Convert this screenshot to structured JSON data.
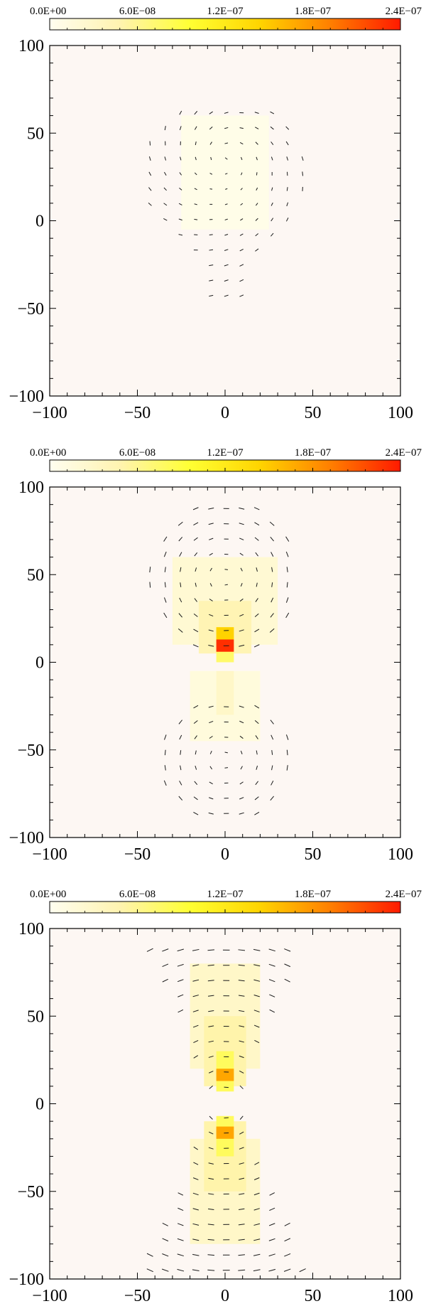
{
  "colorbar": {
    "tick_labels": [
      "0.0E+00",
      "6.0E−08",
      "1.2E−07",
      "1.8E−07",
      "2.4E−07"
    ],
    "colors": [
      "#fffef0",
      "#fff3b0",
      "#ffff33",
      "#ffd400",
      "#ff7f00",
      "#ff1a00"
    ]
  },
  "chart_data": [
    {
      "type": "heatmap",
      "panel": "top",
      "title": "",
      "xlabel": "",
      "ylabel": "",
      "xlim": [
        -100,
        100
      ],
      "ylim": [
        -100,
        100
      ],
      "x_tick_labels": [
        "−100",
        "−50",
        "0",
        "50",
        "100"
      ],
      "y_tick_labels": [
        "100",
        "50",
        "0",
        "−50",
        "−100"
      ],
      "color_range": [
        0,
        2.4e-07
      ],
      "background_color": "#fdf7f3",
      "cells": [
        {
          "x": [
            -5,
            5
          ],
          "y": [
            0,
            50
          ],
          "value": 1.6e-08
        },
        {
          "x": [
            -25,
            25
          ],
          "y": [
            -5,
            60
          ],
          "value": 6e-09
        }
      ],
      "vectors": {
        "region": "blob above center, radius about 45, plus a narrow stem below to y=-45",
        "spacing": 8.7
      }
    },
    {
      "type": "heatmap",
      "panel": "middle",
      "title": "",
      "xlabel": "",
      "ylabel": "",
      "xlim": [
        -100,
        100
      ],
      "ylim": [
        -100,
        100
      ],
      "x_tick_labels": [
        "−100",
        "−50",
        "0",
        "50",
        "100"
      ],
      "y_tick_labels": [
        "100",
        "50",
        "0",
        "−50",
        "−100"
      ],
      "color_range": [
        0,
        2.4e-07
      ],
      "background_color": "#fdf7f3",
      "cells": [
        {
          "x": [
            -30,
            30
          ],
          "y": [
            10,
            60
          ],
          "value": 2.2e-08
        },
        {
          "x": [
            -15,
            15
          ],
          "y": [
            5,
            35
          ],
          "value": 4.5e-08
        },
        {
          "x": [
            -5,
            5
          ],
          "y": [
            0,
            20
          ],
          "value": 7.5e-08
        },
        {
          "x": [
            -5,
            5
          ],
          "y": [
            13,
            20
          ],
          "value": 1.45e-07
        },
        {
          "x": [
            -5,
            5
          ],
          "y": [
            6,
            13
          ],
          "value": 2.3e-07
        },
        {
          "x": [
            -20,
            20
          ],
          "y": [
            -45,
            -5
          ],
          "value": 1.5e-08
        },
        {
          "x": [
            -5,
            5
          ],
          "y": [
            -30,
            -5
          ],
          "value": 3e-08
        }
      ],
      "vectors": {
        "region": "upper lobe around (0, 50) radius about 45 and lower lobe around (0, -55) radius about 38",
        "spacing": 8.7
      }
    },
    {
      "type": "heatmap",
      "panel": "bottom",
      "title": "",
      "xlabel": "",
      "ylabel": "",
      "xlim": [
        -100,
        100
      ],
      "ylim": [
        -100,
        100
      ],
      "x_tick_labels": [
        "−100",
        "−50",
        "0",
        "50",
        "100"
      ],
      "y_tick_labels": [
        "100",
        "50",
        "0",
        "−50",
        "−100"
      ],
      "color_range": [
        0,
        2.4e-07
      ],
      "background_color": "#fdf7f3",
      "cells": [
        {
          "x": [
            -20,
            20
          ],
          "y": [
            20,
            80
          ],
          "value": 3e-08
        },
        {
          "x": [
            -12,
            12
          ],
          "y": [
            10,
            50
          ],
          "value": 5e-08
        },
        {
          "x": [
            -5,
            5
          ],
          "y": [
            7,
            30
          ],
          "value": 8e-08
        },
        {
          "x": [
            -5,
            5
          ],
          "y": [
            13,
            20
          ],
          "value": 1.7e-07
        },
        {
          "x": [
            -20,
            20
          ],
          "y": [
            -80,
            -20
          ],
          "value": 3e-08
        },
        {
          "x": [
            -12,
            12
          ],
          "y": [
            -50,
            -10
          ],
          "value": 5e-08
        },
        {
          "x": [
            -5,
            5
          ],
          "y": [
            -30,
            -7
          ],
          "value": 8e-08
        },
        {
          "x": [
            -5,
            5
          ],
          "y": [
            -20,
            -13
          ],
          "value": 1.7e-07
        }
      ],
      "vectors": {
        "region": "two cones (hourglass) opening upward and downward from the origin, cut off at |y| = 95",
        "spacing": 8.7
      }
    }
  ]
}
